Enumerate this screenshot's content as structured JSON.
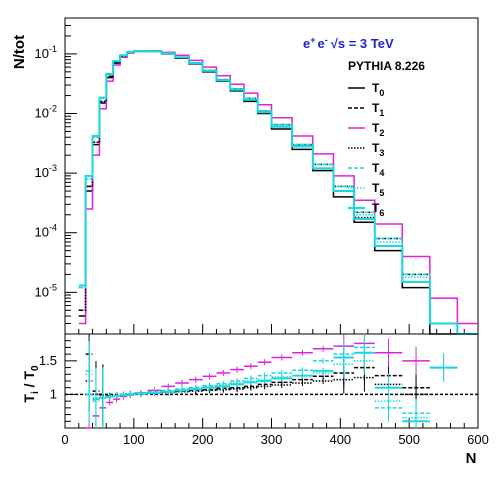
{
  "chart_data": [
    {
      "type": "line",
      "panel": "main",
      "ylabel": "N/tot",
      "yscale": "log",
      "ylim": [
        2e-06,
        0.4
      ],
      "xlim": [
        0,
        600
      ],
      "annotations": {
        "energy_ee": "e",
        "energy_plus": "+",
        "energy_minus": "-",
        "energy_sqrt": "√s = 3 TeV",
        "generator": "PYTHIA 8.226"
      },
      "ytick_labels": [
        {
          "base": "10",
          "exp": "-1",
          "value": 0.1
        },
        {
          "base": "10",
          "exp": "-2",
          "value": 0.01
        },
        {
          "base": "10",
          "exp": "-3",
          "value": 0.001
        },
        {
          "base": "10",
          "exp": "-4",
          "value": 0.0001
        },
        {
          "base": "10",
          "exp": "-5",
          "value": 1e-05
        }
      ],
      "legend": [
        {
          "name": "T",
          "sub": "0",
          "color": "#000000",
          "dash": "",
          "width": 1.5
        },
        {
          "name": "T",
          "sub": "1",
          "color": "#000000",
          "dash": "4,2",
          "width": 1.5
        },
        {
          "name": "T",
          "sub": "2",
          "color": "#e020e0",
          "dash": "",
          "width": 1.5
        },
        {
          "name": "T",
          "sub": "3",
          "color": "#000000",
          "dash": "1.5,1.5",
          "width": 1.5
        },
        {
          "name": "T",
          "sub": "4",
          "color": "#1ad6e0",
          "dash": "4,2",
          "width": 1.5
        },
        {
          "name": "T",
          "sub": "5",
          "color": "#1ad6e0",
          "dash": "1.5,1.5",
          "width": 1.5
        },
        {
          "name": "T",
          "sub": "6",
          "color": "#1ad6e0",
          "dash": "",
          "width": 2
        }
      ],
      "bin_edges": [
        20,
        30,
        40,
        50,
        60,
        70,
        80,
        90,
        100,
        120,
        140,
        160,
        180,
        200,
        220,
        240,
        260,
        280,
        300,
        330,
        360,
        390,
        420,
        450,
        490,
        530,
        570,
        600
      ],
      "series": [
        {
          "key": "T0",
          "values": [
            4e-06,
            0.0005,
            0.003,
            0.015,
            0.04,
            0.07,
            0.09,
            0.105,
            0.11,
            0.11,
            0.1,
            0.085,
            0.068,
            0.05,
            0.035,
            0.024,
            0.016,
            0.01,
            0.0055,
            0.0025,
            0.0011,
            0.0004,
            0.00015,
            5e-05,
            1.2e-05,
            2e-06,
            2e-06
          ]
        },
        {
          "key": "T1",
          "values": [
            5e-06,
            0.0006,
            0.0033,
            0.016,
            0.042,
            0.072,
            0.092,
            0.106,
            0.112,
            0.112,
            0.102,
            0.088,
            0.071,
            0.053,
            0.037,
            0.026,
            0.018,
            0.011,
            0.0065,
            0.003,
            0.0014,
            0.0006,
            0.00022,
            8e-05,
            2e-05,
            3e-06,
            2e-06
          ]
        },
        {
          "key": "T2",
          "values": [
            3e-06,
            0.00025,
            0.002,
            0.012,
            0.035,
            0.065,
            0.088,
            0.103,
            0.11,
            0.112,
            0.106,
            0.095,
            0.078,
            0.06,
            0.043,
            0.031,
            0.022,
            0.014,
            0.0085,
            0.0042,
            0.0021,
            0.0009,
            0.00035,
            0.00014,
            4e-05,
            8e-06,
            3e-06
          ]
        },
        {
          "key": "T3",
          "values": [
            5e-06,
            0.0006,
            0.0033,
            0.016,
            0.042,
            0.072,
            0.092,
            0.106,
            0.112,
            0.112,
            0.102,
            0.087,
            0.07,
            0.052,
            0.036,
            0.025,
            0.017,
            0.0105,
            0.006,
            0.0028,
            0.0012,
            0.0005,
            0.00018,
            6e-05,
            1.5e-05,
            3e-06,
            2e-06
          ]
        },
        {
          "key": "T4",
          "values": [
            1.2e-05,
            0.0008,
            0.004,
            0.018,
            0.045,
            0.075,
            0.094,
            0.107,
            0.112,
            0.111,
            0.102,
            0.088,
            0.071,
            0.053,
            0.037,
            0.026,
            0.018,
            0.011,
            0.0065,
            0.003,
            0.0014,
            0.0006,
            0.00022,
            8e-05,
            2e-05,
            3e-06,
            2e-06
          ]
        },
        {
          "key": "T5",
          "values": [
            1.2e-05,
            0.0008,
            0.004,
            0.018,
            0.045,
            0.075,
            0.094,
            0.107,
            0.112,
            0.111,
            0.102,
            0.088,
            0.071,
            0.053,
            0.037,
            0.026,
            0.018,
            0.011,
            0.0065,
            0.003,
            0.0014,
            0.0006,
            0.0002,
            7e-05,
            1.8e-05,
            3e-06,
            2e-06
          ]
        },
        {
          "key": "T6",
          "values": [
            1.3e-05,
            0.0009,
            0.0042,
            0.0185,
            0.046,
            0.076,
            0.095,
            0.107,
            0.112,
            0.111,
            0.102,
            0.088,
            0.07,
            0.052,
            0.036,
            0.025,
            0.017,
            0.0105,
            0.006,
            0.0028,
            0.0012,
            0.0005,
            0.00017,
            6e-05,
            1.5e-05,
            3e-06,
            2e-06
          ]
        }
      ]
    },
    {
      "type": "scatter",
      "panel": "ratio",
      "ylabel": "T",
      "ylabel_sub": "i",
      "ylabel_den": " / T",
      "ylabel_den_sub": "0",
      "xlabel": "N",
      "xlim": [
        0,
        600
      ],
      "ylim": [
        0.5,
        1.9
      ],
      "reference_line": 1,
      "xtick_labels": [
        "0",
        "100",
        "200",
        "300",
        "400",
        "500",
        "600"
      ],
      "xtick_values": [
        0,
        100,
        200,
        300,
        400,
        500,
        600
      ],
      "ytick_labels": [
        "1",
        "1.5"
      ],
      "ytick_values": [
        1,
        1.5
      ],
      "series": [
        {
          "key": "T1",
          "color": "#000000",
          "points": [
            [
              35,
              1.6
            ],
            [
              45,
              1.05
            ],
            [
              55,
              1.0
            ],
            [
              65,
              0.98
            ],
            [
              75,
              0.98
            ],
            [
              85,
              1.0
            ],
            [
              95,
              1.01
            ],
            [
              110,
              1.02
            ],
            [
              130,
              1.03
            ],
            [
              150,
              1.04
            ],
            [
              170,
              1.05
            ],
            [
              190,
              1.06
            ],
            [
              210,
              1.07
            ],
            [
              230,
              1.09
            ],
            [
              250,
              1.1
            ],
            [
              270,
              1.12
            ],
            [
              290,
              1.15
            ],
            [
              315,
              1.18
            ],
            [
              345,
              1.22
            ],
            [
              375,
              1.27
            ],
            [
              405,
              1.32
            ],
            [
              435,
              1.4
            ],
            [
              470,
              1.28
            ],
            [
              510,
              1.1
            ]
          ]
        },
        {
          "key": "T2",
          "color": "#e020e0",
          "points": [
            [
              35,
              0.5
            ],
            [
              45,
              0.68
            ],
            [
              55,
              0.8
            ],
            [
              65,
              0.88
            ],
            [
              75,
              0.93
            ],
            [
              85,
              0.97
            ],
            [
              95,
              0.99
            ],
            [
              110,
              1.02
            ],
            [
              130,
              1.06
            ],
            [
              150,
              1.12
            ],
            [
              170,
              1.17
            ],
            [
              190,
              1.22
            ],
            [
              210,
              1.27
            ],
            [
              230,
              1.32
            ],
            [
              250,
              1.37
            ],
            [
              270,
              1.42
            ],
            [
              290,
              1.48
            ],
            [
              315,
              1.55
            ],
            [
              345,
              1.62
            ],
            [
              375,
              1.68
            ],
            [
              405,
              1.72
            ],
            [
              435,
              1.76
            ],
            [
              470,
              1.62
            ],
            [
              510,
              1.5
            ],
            [
              550,
              1.4
            ]
          ]
        },
        {
          "key": "T3",
          "color": "#000000",
          "points": [
            [
              35,
              1.2
            ],
            [
              45,
              1.0
            ],
            [
              55,
              0.99
            ],
            [
              65,
              0.98
            ],
            [
              75,
              0.98
            ],
            [
              85,
              0.99
            ],
            [
              95,
              1.0
            ],
            [
              110,
              1.01
            ],
            [
              130,
              1.02
            ],
            [
              150,
              1.03
            ],
            [
              170,
              1.04
            ],
            [
              190,
              1.05
            ],
            [
              210,
              1.06
            ],
            [
              230,
              1.07
            ],
            [
              250,
              1.08
            ],
            [
              270,
              1.1
            ],
            [
              290,
              1.12
            ],
            [
              315,
              1.14
            ],
            [
              345,
              1.17
            ],
            [
              375,
              1.2
            ],
            [
              405,
              1.22
            ],
            [
              435,
              1.25
            ],
            [
              470,
              1.15
            ],
            [
              510,
              1.0
            ]
          ]
        },
        {
          "key": "T4",
          "color": "#1ad6e0",
          "points": [
            [
              35,
              1.35
            ],
            [
              45,
              0.9
            ],
            [
              55,
              0.95
            ],
            [
              65,
              0.96
            ],
            [
              75,
              0.98
            ],
            [
              85,
              1.0
            ],
            [
              95,
              1.01
            ],
            [
              110,
              1.02
            ],
            [
              130,
              1.04
            ],
            [
              150,
              1.06
            ],
            [
              170,
              1.08
            ],
            [
              190,
              1.1
            ],
            [
              210,
              1.13
            ],
            [
              230,
              1.16
            ],
            [
              250,
              1.2
            ],
            [
              270,
              1.24
            ],
            [
              290,
              1.28
            ],
            [
              315,
              1.32
            ],
            [
              345,
              1.36
            ],
            [
              375,
              1.5
            ],
            [
              405,
              1.6
            ],
            [
              435,
              1.7
            ],
            [
              470,
              0.8
            ],
            [
              510,
              0.72
            ]
          ]
        },
        {
          "key": "T5",
          "color": "#1ad6e0",
          "points": [
            [
              35,
              1.3
            ],
            [
              45,
              0.95
            ],
            [
              55,
              0.96
            ],
            [
              65,
              0.97
            ],
            [
              75,
              0.98
            ],
            [
              85,
              0.99
            ],
            [
              95,
              1.0
            ],
            [
              110,
              1.01
            ],
            [
              130,
              1.03
            ],
            [
              150,
              1.05
            ],
            [
              170,
              1.07
            ],
            [
              190,
              1.09
            ],
            [
              210,
              1.12
            ],
            [
              230,
              1.14
            ],
            [
              250,
              1.17
            ],
            [
              270,
              1.2
            ],
            [
              290,
              1.22
            ],
            [
              315,
              1.26
            ],
            [
              345,
              1.28
            ],
            [
              375,
              1.32
            ],
            [
              405,
              1.45
            ],
            [
              435,
              1.5
            ],
            [
              470,
              0.9
            ],
            [
              510,
              0.65
            ]
          ]
        },
        {
          "key": "T6",
          "color": "#1ad6e0",
          "points": [
            [
              35,
              1.0
            ],
            [
              45,
              0.93
            ],
            [
              55,
              0.95
            ],
            [
              65,
              0.97
            ],
            [
              75,
              0.98
            ],
            [
              85,
              0.99
            ],
            [
              95,
              1.0
            ],
            [
              110,
              1.01
            ],
            [
              130,
              1.02
            ],
            [
              150,
              1.04
            ],
            [
              170,
              1.06
            ],
            [
              190,
              1.08
            ],
            [
              210,
              1.1
            ],
            [
              230,
              1.12
            ],
            [
              250,
              1.15
            ],
            [
              270,
              1.18
            ],
            [
              290,
              1.2
            ],
            [
              315,
              1.24
            ],
            [
              345,
              1.28
            ],
            [
              375,
              1.35
            ],
            [
              405,
              1.55
            ],
            [
              435,
              1.62
            ],
            [
              470,
              1.1
            ],
            [
              510,
              0.6
            ],
            [
              550,
              1.4
            ]
          ]
        }
      ]
    }
  ]
}
